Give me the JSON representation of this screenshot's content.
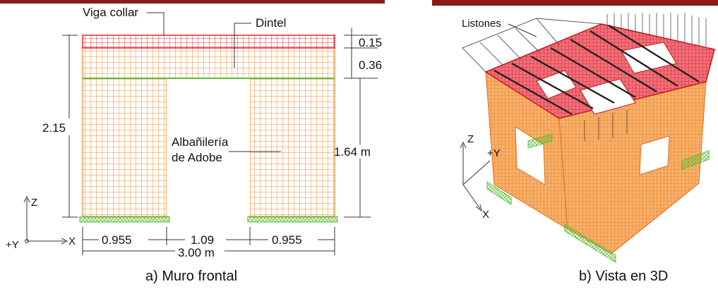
{
  "colors": {
    "accent_bar": "#8b1a1a",
    "beam_red": "#e8262b",
    "adobe_orange": "#f08a2c",
    "support_green": "#5bbf3a",
    "listones_black": "#222222"
  },
  "front_wall": {
    "labels": {
      "viga_collar": "Viga collar",
      "dintel": "Dintel",
      "albanileria_line1": "Albañilería",
      "albanileria_line2": "de Adobe",
      "caption": "a)   Muro frontal"
    },
    "dims": {
      "top_beam": "0.15",
      "lintel": "0.36",
      "height": "2.15",
      "opening_height": "1.64 m",
      "left_pier": "0.955",
      "opening_width": "1.09",
      "right_pier": "0.955",
      "total_width": "3.00 m"
    },
    "axes": {
      "z": "Z",
      "x": "X",
      "y": "+Y"
    }
  },
  "view_3d": {
    "labels": {
      "listones": "Listones",
      "caption": "b)  Vista en 3D"
    },
    "axes": {
      "z": "Z",
      "y": "+Y",
      "x": "X"
    }
  }
}
